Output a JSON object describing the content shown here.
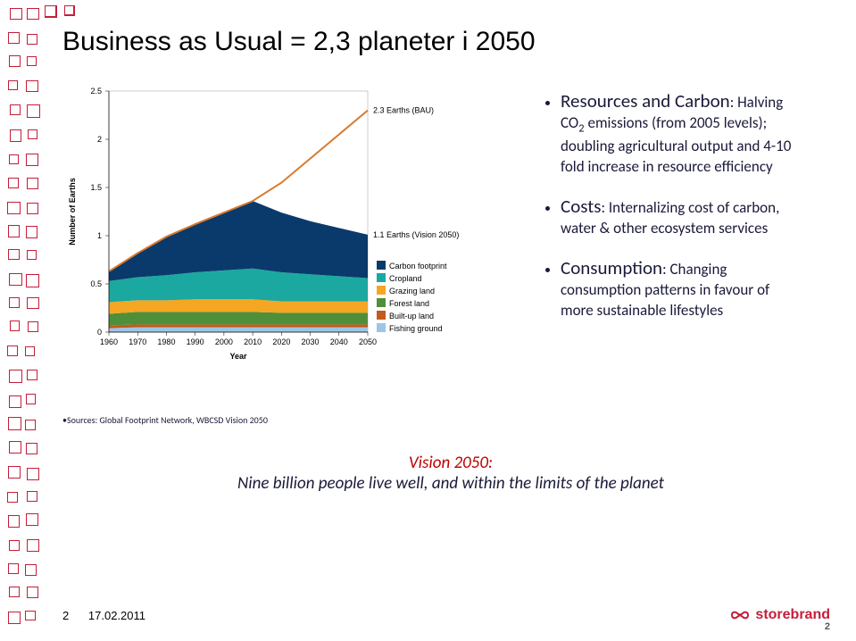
{
  "title": "Business as Usual = 2,3 planeter i 2050",
  "chart": {
    "type": "area+line",
    "xlabel": "Year",
    "ylabel": "Number of Earths",
    "xlim": [
      1960,
      2050
    ],
    "ylim": [
      0,
      2.5
    ],
    "xticks": [
      1960,
      1970,
      1980,
      1990,
      2000,
      2010,
      2020,
      2030,
      2040,
      2050
    ],
    "yticks": [
      0,
      0.5,
      1,
      1.5,
      2,
      2.5
    ],
    "background_color": "#ffffff",
    "series_stacked": [
      {
        "name": "Fishing ground",
        "color": "#9cc5e8",
        "values": [
          0.04,
          0.05,
          0.05,
          0.05,
          0.05,
          0.05,
          0.05,
          0.05,
          0.05,
          0.05
        ]
      },
      {
        "name": "Built-up land",
        "color": "#c45a1c",
        "values": [
          0.03,
          0.03,
          0.03,
          0.03,
          0.03,
          0.03,
          0.03,
          0.03,
          0.03,
          0.03
        ]
      },
      {
        "name": "Forest land",
        "color": "#4f8f3a",
        "values": [
          0.12,
          0.13,
          0.13,
          0.13,
          0.13,
          0.13,
          0.12,
          0.12,
          0.12,
          0.12
        ]
      },
      {
        "name": "Grazing land",
        "color": "#f5a623",
        "values": [
          0.12,
          0.12,
          0.12,
          0.13,
          0.13,
          0.13,
          0.12,
          0.12,
          0.12,
          0.12
        ]
      },
      {
        "name": "Cropland",
        "color": "#1ba8a0",
        "values": [
          0.22,
          0.24,
          0.26,
          0.28,
          0.3,
          0.32,
          0.3,
          0.28,
          0.26,
          0.24
        ]
      },
      {
        "name": "Carbon footprint",
        "color": "#0a3a6b",
        "values": [
          0.1,
          0.25,
          0.4,
          0.5,
          0.6,
          0.7,
          0.62,
          0.55,
          0.5,
          0.45
        ]
      }
    ],
    "line_bau": {
      "name": "2.3 Earths (BAU)",
      "color": "#d97a2e",
      "width": 2,
      "values": [
        0.63,
        0.82,
        0.99,
        1.12,
        1.24,
        1.36,
        1.55,
        1.8,
        2.05,
        2.3
      ]
    },
    "annot_bau": "2.3 Earths (BAU)",
    "annot_v2050": "1.1 Earths (Vision 2050)",
    "legend_items": [
      "Carbon footprint",
      "Cropland",
      "Grazing land",
      "Forest land",
      "Built-up land",
      "Fishing ground"
    ],
    "legend_colors": [
      "#0a3a6b",
      "#1ba8a0",
      "#f5a623",
      "#4f8f3a",
      "#c45a1c",
      "#9cc5e8"
    ],
    "axis_fontsize": 9,
    "label_fontsize": 9
  },
  "bullets": {
    "b1_head": "Resources and Carbon",
    "b1_body": ": Halving CO",
    "b1_body2": " emissions (from 2005 levels); doubling agricultural output and 4-10 fold increase in resource efficiency",
    "b2_head": "Costs",
    "b2_body": ": Internalizing cost of carbon, water & other ecosystem services",
    "b3_head": "Consumption",
    "b3_body": ": Changing consumption patterns in favour of more sustainable lifestyles"
  },
  "sources_label": "Sources: Global Footprint Network, WBCSD Vision 2050",
  "vision": {
    "t1": "Vision 2050:",
    "t2": "Nine billion people live well, and within the limits of the planet"
  },
  "footer": {
    "page": "2",
    "date": "17.02.2011",
    "brand": "storebrand",
    "page2": "2"
  },
  "theme": {
    "square_border": "#c41e3a",
    "brand_color": "#c41e3a"
  }
}
